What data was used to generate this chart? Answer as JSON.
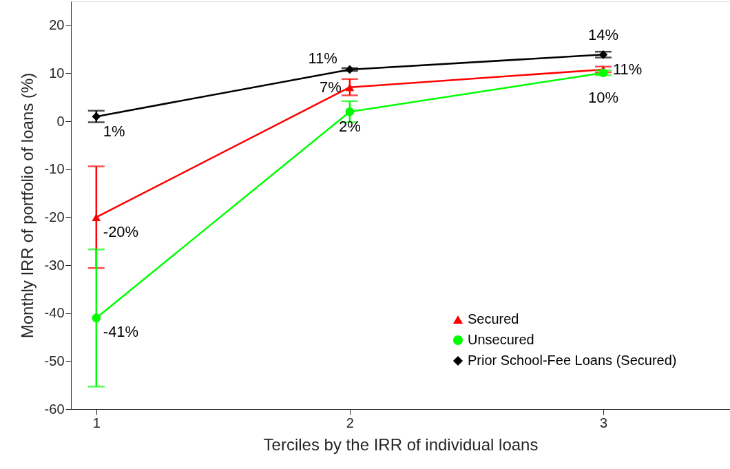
{
  "chart_data": {
    "type": "line",
    "xlabel": "Terciles by the IRR of individual loans",
    "ylabel": "Monthly IRR of portfolio of loans (%)",
    "x": [
      1,
      2,
      3
    ],
    "xlim": [
      0.9,
      3.5
    ],
    "xticks": [
      1,
      2,
      3
    ],
    "ylim": [
      -60,
      25
    ],
    "yticks": [
      -60,
      -50,
      -40,
      -30,
      -20,
      -10,
      0,
      10,
      20
    ],
    "grid": false,
    "legend": "bottom right",
    "series": [
      {
        "name": "Secured",
        "color": "#ff0000",
        "marker": "triangle",
        "values": [
          -20,
          7.1,
          10.8
        ],
        "errors": [
          10.6,
          1.7,
          0.6
        ],
        "value_labels": [
          "-20%",
          "7%",
          "11%"
        ]
      },
      {
        "name": "Unsecured",
        "color": "#00ff00",
        "marker": "circle",
        "values": [
          -41,
          2,
          10.1
        ],
        "errors": [
          14.3,
          2.2,
          0.5
        ],
        "value_labels": [
          "-41%",
          "2%",
          "10%"
        ]
      },
      {
        "name": "Prior School-Fee Loans (Secured)",
        "color": "#000000",
        "marker": "diamond",
        "values": [
          1,
          10.8,
          13.9
        ],
        "errors": [
          1.2,
          0.3,
          0.6
        ],
        "value_labels": [
          "1%",
          "11%",
          "14%"
        ]
      }
    ]
  }
}
